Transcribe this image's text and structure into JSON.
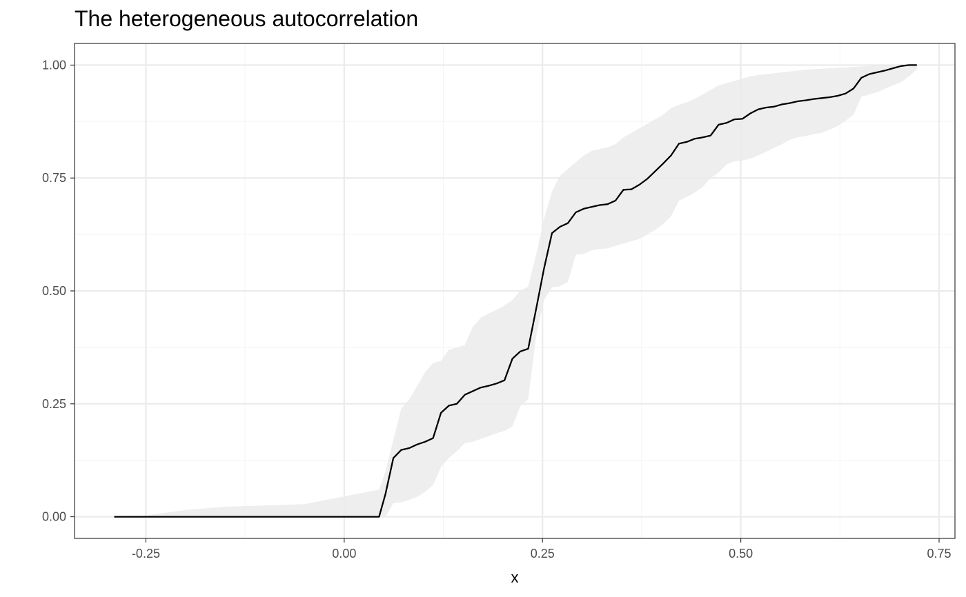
{
  "chart_data": {
    "type": "line",
    "title": "The heterogeneous autocorrelation",
    "xlabel": "x",
    "ylabel": "",
    "xlim": [
      -0.34,
      0.77
    ],
    "ylim": [
      -0.048,
      1.048
    ],
    "x_ticks": [
      -0.25,
      0.0,
      0.25,
      0.5,
      0.75
    ],
    "x_tick_labels": [
      "-0.25",
      "0.00",
      "0.25",
      "0.50",
      "0.75"
    ],
    "y_ticks": [
      0.0,
      0.25,
      0.5,
      0.75,
      1.0
    ],
    "y_tick_labels": [
      "0.00",
      "0.25",
      "0.50",
      "0.75",
      "1.00"
    ],
    "x_minor": [
      -0.125,
      0.125,
      0.375,
      0.625
    ],
    "y_minor": [
      0.125,
      0.375,
      0.625,
      0.875
    ],
    "grid": true,
    "colors": {
      "line": "#000000",
      "band": "#ebebeb",
      "grid_major": "#ebebeb",
      "grid_minor": "#f5f5f5",
      "panel_border": "#333333"
    },
    "series": [
      {
        "x": [
          -0.29,
          -0.25,
          -0.2,
          -0.15,
          -0.1,
          -0.05,
          0.0,
          0.044,
          0.052,
          0.062,
          0.072,
          0.082,
          0.092,
          0.102,
          0.112,
          0.122,
          0.132,
          0.142,
          0.152,
          0.162,
          0.172,
          0.182,
          0.192,
          0.202,
          0.212,
          0.222,
          0.232,
          0.242,
          0.252,
          0.262,
          0.272,
          0.282,
          0.292,
          0.302,
          0.312,
          0.322,
          0.332,
          0.342,
          0.352,
          0.362,
          0.372,
          0.382,
          0.392,
          0.402,
          0.412,
          0.422,
          0.432,
          0.442,
          0.452,
          0.462,
          0.472,
          0.482,
          0.492,
          0.502,
          0.512,
          0.522,
          0.532,
          0.542,
          0.552,
          0.562,
          0.572,
          0.582,
          0.592,
          0.602,
          0.612,
          0.622,
          0.632,
          0.642,
          0.652,
          0.662,
          0.672,
          0.682,
          0.692,
          0.702,
          0.712,
          0.722
        ],
        "y": [
          0.0,
          0.0,
          0.0,
          0.0,
          0.0,
          0.0,
          0.0,
          0.0,
          0.05,
          0.13,
          0.148,
          0.152,
          0.16,
          0.166,
          0.174,
          0.23,
          0.246,
          0.25,
          0.27,
          0.278,
          0.286,
          0.29,
          0.295,
          0.302,
          0.35,
          0.366,
          0.372,
          0.46,
          0.55,
          0.628,
          0.642,
          0.65,
          0.674,
          0.682,
          0.686,
          0.69,
          0.692,
          0.7,
          0.724,
          0.725,
          0.735,
          0.748,
          0.765,
          0.782,
          0.8,
          0.826,
          0.83,
          0.837,
          0.84,
          0.844,
          0.868,
          0.872,
          0.88,
          0.881,
          0.893,
          0.902,
          0.906,
          0.908,
          0.913,
          0.916,
          0.92,
          0.922,
          0.925,
          0.927,
          0.929,
          0.932,
          0.937,
          0.948,
          0.972,
          0.98,
          0.984,
          0.988,
          0.993,
          0.998,
          1.0,
          1.0
        ],
        "lower": [
          0.0,
          0.0,
          0.0,
          0.0,
          0.0,
          0.0,
          0.0,
          0.0,
          0.0,
          0.03,
          0.032,
          0.037,
          0.044,
          0.055,
          0.07,
          0.11,
          0.13,
          0.145,
          0.163,
          0.166,
          0.172,
          0.178,
          0.185,
          0.19,
          0.2,
          0.245,
          0.26,
          0.4,
          0.48,
          0.508,
          0.51,
          0.52,
          0.58,
          0.582,
          0.59,
          0.593,
          0.594,
          0.6,
          0.605,
          0.61,
          0.615,
          0.625,
          0.635,
          0.648,
          0.665,
          0.7,
          0.708,
          0.718,
          0.73,
          0.75,
          0.762,
          0.78,
          0.787,
          0.789,
          0.793,
          0.8,
          0.808,
          0.817,
          0.825,
          0.835,
          0.84,
          0.843,
          0.847,
          0.85,
          0.857,
          0.865,
          0.877,
          0.89,
          0.93,
          0.935,
          0.94,
          0.948,
          0.955,
          0.962,
          0.975,
          0.99
        ],
        "upper": [
          0.0,
          0.003,
          0.015,
          0.022,
          0.025,
          0.028,
          0.045,
          0.06,
          0.1,
          0.17,
          0.24,
          0.26,
          0.29,
          0.32,
          0.34,
          0.345,
          0.37,
          0.375,
          0.38,
          0.42,
          0.44,
          0.45,
          0.458,
          0.468,
          0.48,
          0.5,
          0.51,
          0.58,
          0.66,
          0.72,
          0.755,
          0.77,
          0.785,
          0.8,
          0.81,
          0.814,
          0.818,
          0.825,
          0.84,
          0.85,
          0.86,
          0.87,
          0.88,
          0.89,
          0.905,
          0.912,
          0.918,
          0.925,
          0.935,
          0.945,
          0.955,
          0.96,
          0.965,
          0.97,
          0.975,
          0.978,
          0.98,
          0.982,
          0.984,
          0.986,
          0.988,
          0.99,
          0.991,
          0.992,
          0.993,
          0.994,
          0.995,
          0.996,
          0.997,
          0.998,
          0.999,
          1.0,
          1.0,
          1.0,
          1.0,
          1.0
        ]
      }
    ]
  }
}
